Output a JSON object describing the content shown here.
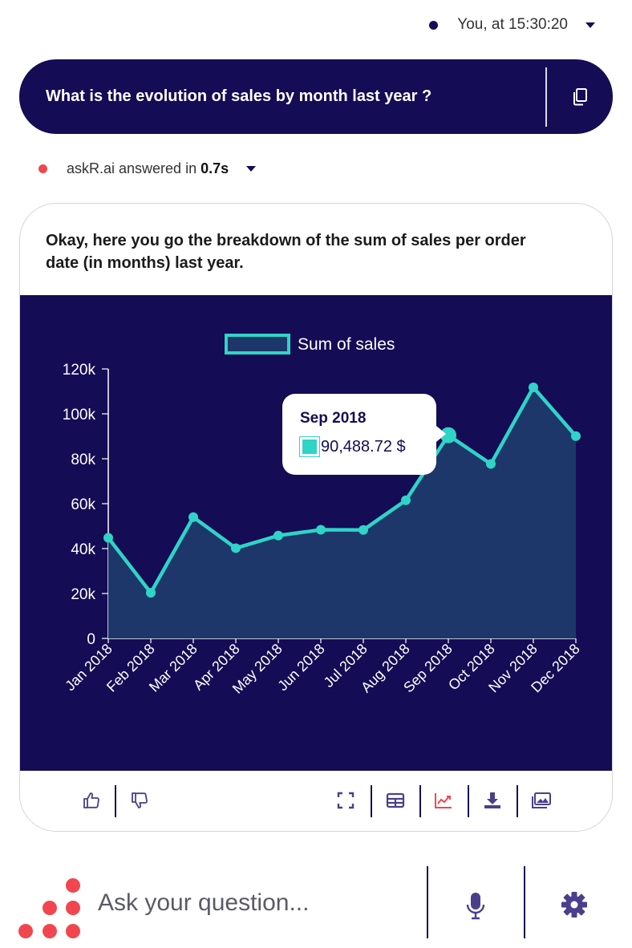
{
  "user_meta": {
    "label": "You, at 15:30:20"
  },
  "question": {
    "text": "What is the evolution of sales by month last year ?"
  },
  "answer_meta": {
    "prefix": "askR.ai answered in",
    "duration": "0.7s"
  },
  "answer": {
    "text": "Okay, here you go the breakdown of the sum of sales per order date (in months) last year."
  },
  "tooltip": {
    "title": "Sep 2018",
    "value": "90,488.72 $"
  },
  "composer": {
    "placeholder": "Ask your question..."
  },
  "icons": {
    "copy": "copy-icon",
    "thumbs_up": "thumbs-up-icon",
    "thumbs_down": "thumbs-down-icon",
    "fullscreen": "fullscreen-icon",
    "table": "table-icon",
    "chart": "line-chart-icon",
    "download": "download-icon",
    "image": "image-icon",
    "mic": "microphone-icon",
    "gear": "gear-icon"
  },
  "colors": {
    "navy": "#140c55",
    "teal": "#2fd4c6",
    "area": "#1d376b",
    "red": "#f2464e",
    "chart_icon_active": "#f2464e"
  },
  "chart_data": {
    "type": "area",
    "title": "",
    "xlabel": "",
    "ylabel": "",
    "categories": [
      "Jan 2018",
      "Feb 2018",
      "Mar 2018",
      "Apr 2018",
      "May 2018",
      "Jun 2018",
      "Jul 2018",
      "Aug 2018",
      "Sep 2018",
      "Oct 2018",
      "Nov 2018",
      "Dec 2018"
    ],
    "series": [
      {
        "name": "Sum of sales",
        "values": [
          44800,
          20300,
          54000,
          40200,
          45800,
          48400,
          48300,
          61500,
          90488.72,
          77700,
          111800,
          90100
        ]
      }
    ],
    "ylim": [
      0,
      120000
    ],
    "yticks": [
      0,
      20000,
      40000,
      60000,
      80000,
      100000,
      120000
    ],
    "ytick_labels": [
      "0",
      "20k",
      "40k",
      "60k",
      "80k",
      "100k",
      "120k"
    ],
    "legend": "top-center",
    "grid": false,
    "highlight_index": 8
  }
}
